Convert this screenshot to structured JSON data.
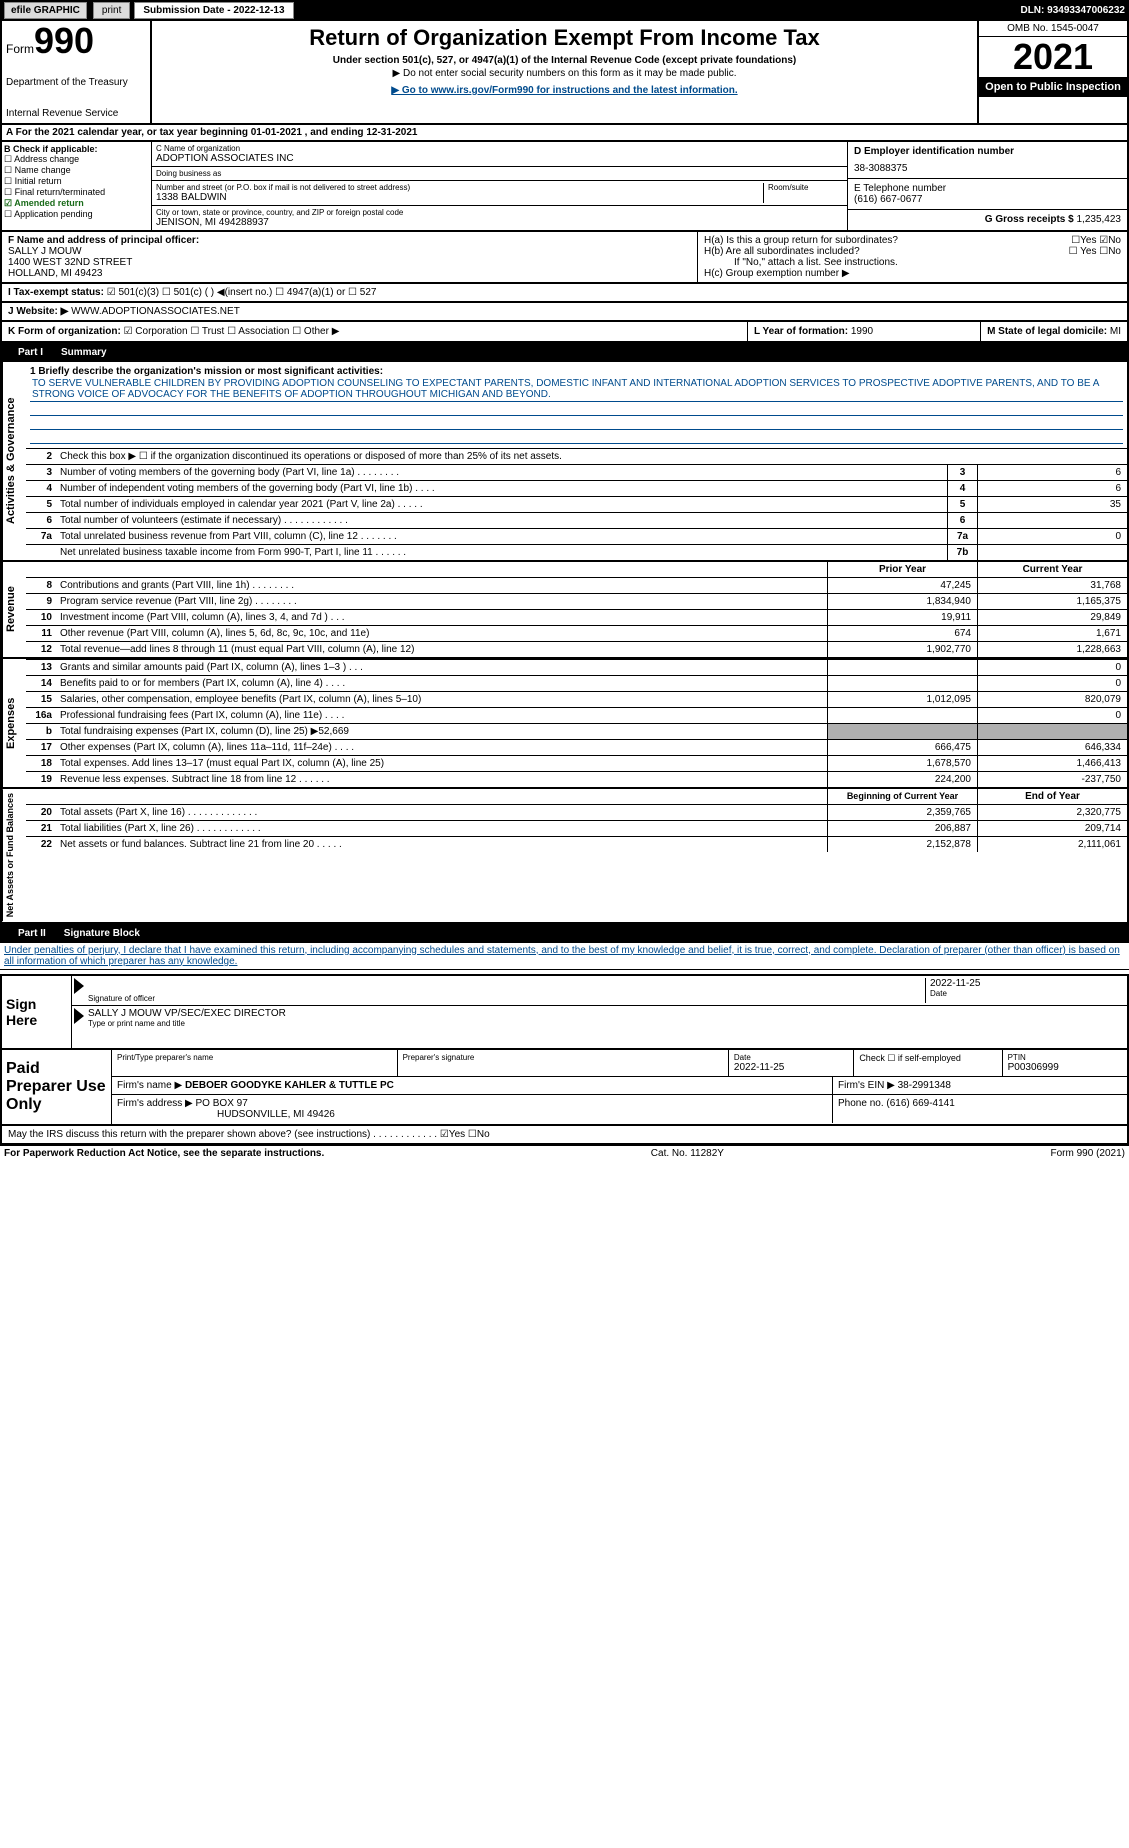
{
  "topbar": {
    "efile": "efile GRAPHIC",
    "print": "print",
    "subm_lbl": "Submission Date - 2022-12-13",
    "dln": "DLN: 93493347006232"
  },
  "header": {
    "form": "Form",
    "no": "990",
    "dept": "Department of the Treasury",
    "irs": "Internal Revenue Service",
    "title": "Return of Organization Exempt From Income Tax",
    "sub": "Under section 501(c), 527, or 4947(a)(1) of the Internal Revenue Code (except private foundations)",
    "sub2": "▶ Do not enter social security numbers on this form as it may be made public.",
    "goto": "▶ Go to www.irs.gov/Form990 for instructions and the latest information.",
    "omb": "OMB No. 1545-0047",
    "year": "2021",
    "open": "Open to Public Inspection"
  },
  "period": "A For the 2021 calendar year, or tax year beginning 01-01-2021     , and ending 12-31-2021",
  "B": {
    "hdr": "B Check if applicable:",
    "items": [
      "☐ Address change",
      "☐ Name change",
      "☐ Initial return",
      "☐ Final return/terminated",
      "☑ Amended return",
      "☐ Application pending"
    ]
  },
  "C": {
    "name_lbl": "C Name of organization",
    "name": "ADOPTION ASSOCIATES INC",
    "dba_lbl": "Doing business as",
    "dba": "",
    "addr_lbl": "Number and street (or P.O. box if mail is not delivered to street address)",
    "room_lbl": "Room/suite",
    "addr": "1338 BALDWIN",
    "city_lbl": "City or town, state or province, country, and ZIP or foreign postal code",
    "city": "JENISON, MI  494288937"
  },
  "D": {
    "lbl": "D Employer identification number",
    "val": "38-3088375"
  },
  "E": {
    "lbl": "E Telephone number",
    "val": "(616) 667-0677"
  },
  "G": {
    "lbl": "G Gross receipts $",
    "val": "1,235,423"
  },
  "F": {
    "lbl": "F  Name and address of principal officer:",
    "name": "SALLY J MOUW",
    "addr1": "1400 WEST 32ND STREET",
    "addr2": "HOLLAND, MI  49423"
  },
  "H": {
    "a": "H(a)  Is this a group return for subordinates?",
    "ayn": "☐Yes ☑No",
    "b": "H(b)  Are all subordinates included?",
    "byn": "☐ Yes ☐No",
    "bn": "If \"No,\" attach a list. See instructions.",
    "c": "H(c)  Group exemption number ▶"
  },
  "I": {
    "lbl": "I    Tax-exempt status:",
    "v": "☑ 501(c)(3)   ☐ 501(c) (  ) ◀(insert no.)    ☐ 4947(a)(1) or   ☐ 527"
  },
  "J": {
    "lbl": "J   Website: ▶",
    "v": "WWW.ADOPTIONASSOCIATES.NET"
  },
  "K": {
    "lbl": "K Form of organization:",
    "v": "☑ Corporation  ☐ Trust  ☐ Association  ☐ Other ▶"
  },
  "L": {
    "lbl": "L Year of formation:",
    "v": "1990"
  },
  "M": {
    "lbl": "M State of legal domicile:",
    "v": "MI"
  },
  "part1": {
    "hdr": "Part I",
    "title": "Summary"
  },
  "mission": {
    "q": "1  Briefly describe the organization's mission or most significant activities:",
    "text": "TO SERVE VULNERABLE CHILDREN BY PROVIDING ADOPTION COUNSELING TO EXPECTANT PARENTS, DOMESTIC INFANT AND INTERNATIONAL ADOPTION SERVICES TO PROSPECTIVE ADOPTIVE PARENTS, AND TO BE A STRONG VOICE OF ADVOCACY FOR THE BENEFITS OF ADOPTION THROUGHOUT MICHIGAN AND BEYOND."
  },
  "gov": {
    "label": "Activities & Governance",
    "l2": "Check this box ▶ ☐  if the organization discontinued its operations or disposed of more than 25% of its net assets.",
    "rows": [
      {
        "n": "3",
        "t": "Number of voting members of the governing body (Part VI, line 1a)   .    .    .    .    .    .    .    .",
        "b": "3",
        "v": "6"
      },
      {
        "n": "4",
        "t": "Number of independent voting members of the governing body (Part VI, line 1b)   .    .    .    .",
        "b": "4",
        "v": "6"
      },
      {
        "n": "5",
        "t": "Total number of individuals employed in calendar year 2021 (Part V, line 2a)   .    .    .    .    .",
        "b": "5",
        "v": "35"
      },
      {
        "n": "6",
        "t": "Total number of volunteers (estimate if necessary)    .    .    .    .    .    .    .    .    .    .    .    .",
        "b": "6",
        "v": ""
      },
      {
        "n": "7a",
        "t": "Total unrelated business revenue from Part VIII, column (C), line 12   .    .    .    .    .    .    .",
        "b": "7a",
        "v": "0"
      },
      {
        "n": "",
        "t": "Net unrelated business taxable income from Form 990-T, Part I, line 11   .    .    .    .    .    .",
        "b": "7b",
        "v": ""
      }
    ]
  },
  "rev": {
    "label": "Revenue",
    "hdr_prior": "Prior Year",
    "hdr_curr": "Current Year",
    "rows": [
      {
        "n": "8",
        "t": "Contributions and grants (Part VIII, line 1h)   .    .    .    .    .    .    .    .",
        "p": "47,245",
        "c": "31,768"
      },
      {
        "n": "9",
        "t": "Program service revenue (Part VIII, line 2g)   .    .    .    .    .    .    .    .",
        "p": "1,834,940",
        "c": "1,165,375"
      },
      {
        "n": "10",
        "t": "Investment income (Part VIII, column (A), lines 3, 4, and 7d )    .    .    .",
        "p": "19,911",
        "c": "29,849"
      },
      {
        "n": "11",
        "t": "Other revenue (Part VIII, column (A), lines 5, 6d, 8c, 9c, 10c, and 11e)",
        "p": "674",
        "c": "1,671"
      },
      {
        "n": "12",
        "t": "Total revenue—add lines 8 through 11 (must equal Part VIII, column (A), line 12)",
        "p": "1,902,770",
        "c": "1,228,663"
      }
    ]
  },
  "exp": {
    "label": "Expenses",
    "rows": [
      {
        "n": "13",
        "t": "Grants and similar amounts paid (Part IX, column (A), lines 1–3 )    .    .    .",
        "p": "",
        "c": "0"
      },
      {
        "n": "14",
        "t": "Benefits paid to or for members (Part IX, column (A), line 4)   .    .    .    .",
        "p": "",
        "c": "0"
      },
      {
        "n": "15",
        "t": "Salaries, other compensation, employee benefits (Part IX, column (A), lines 5–10)",
        "p": "1,012,095",
        "c": "820,079"
      },
      {
        "n": "16a",
        "t": "Professional fundraising fees (Part IX, column (A), line 11e)   .    .    .    .",
        "p": "",
        "c": "0"
      },
      {
        "n": "b",
        "t": "Total fundraising expenses (Part IX, column (D), line 25) ▶52,669",
        "p": "shade",
        "c": "shade"
      },
      {
        "n": "17",
        "t": "Other expenses (Part IX, column (A), lines 11a–11d, 11f–24e)   .    .    .    .",
        "p": "666,475",
        "c": "646,334"
      },
      {
        "n": "18",
        "t": "Total expenses. Add lines 13–17 (must equal Part IX, column (A), line 25)",
        "p": "1,678,570",
        "c": "1,466,413"
      },
      {
        "n": "19",
        "t": "Revenue less expenses. Subtract line 18 from line 12   .    .    .    .    .    .",
        "p": "224,200",
        "c": "-237,750"
      }
    ]
  },
  "net": {
    "label": "Net Assets or Fund Balances",
    "hdr_beg": "Beginning of Current Year",
    "hdr_end": "End of Year",
    "rows": [
      {
        "n": "20",
        "t": "Total assets (Part X, line 16)   .    .    .    .    .    .    .    .    .    .    .    .    .",
        "p": "2,359,765",
        "c": "2,320,775"
      },
      {
        "n": "21",
        "t": "Total liabilities (Part X, line 26)   .    .    .    .    .    .    .    .    .    .    .    .",
        "p": "206,887",
        "c": "209,714"
      },
      {
        "n": "22",
        "t": "Net assets or fund balances. Subtract line 21 from line 20   .    .    .    .    .",
        "p": "2,152,878",
        "c": "2,111,061"
      }
    ]
  },
  "part2": {
    "hdr": "Part II",
    "title": "Signature Block"
  },
  "decl": "Under penalties of perjury, I declare that I have examined this return, including accompanying schedules and statements, and to the best of my knowledge and belief, it is true, correct, and complete. Declaration of preparer (other than officer) is based on all information of which preparer has any knowledge.",
  "sign": {
    "here": "Sign Here",
    "sig_lbl": "Signature of officer",
    "date_lbl": "Date",
    "date": "2022-11-25",
    "name": "SALLY J MOUW  VP/SEC/EXEC DIRECTOR",
    "name_lbl": "Type or print name and title"
  },
  "paid": {
    "hdr": "Paid Preparer Use Only",
    "r1": {
      "pname_lbl": "Print/Type preparer's name",
      "pname": "",
      "psig_lbl": "Preparer's signature",
      "date_lbl": "Date",
      "date": "2022-11-25",
      "se": "Check ☐ if self-employed",
      "ptin_lbl": "PTIN",
      "ptin": "P00306999"
    },
    "r2": {
      "firm_lbl": "Firm's name    ▶",
      "firm": "DEBOER GOODYKE KAHLER & TUTTLE PC",
      "ein_lbl": "Firm's EIN ▶",
      "ein": "38-2991348"
    },
    "r3": {
      "addr_lbl": "Firm's address ▶",
      "addr1": "PO BOX 97",
      "addr2": "HUDSONVILLE, MI  49426",
      "ph_lbl": "Phone no.",
      "ph": "(616) 669-4141"
    }
  },
  "discuss": "May the IRS discuss this return with the preparer shown above? (see instructions)   .    .    .    .    .    .    .    .    .    .    .    .      ☑Yes  ☐No",
  "footer": {
    "l": "For Paperwork Reduction Act Notice, see the separate instructions.",
    "c": "Cat. No. 11282Y",
    "r": "Form 990 (2021)"
  }
}
